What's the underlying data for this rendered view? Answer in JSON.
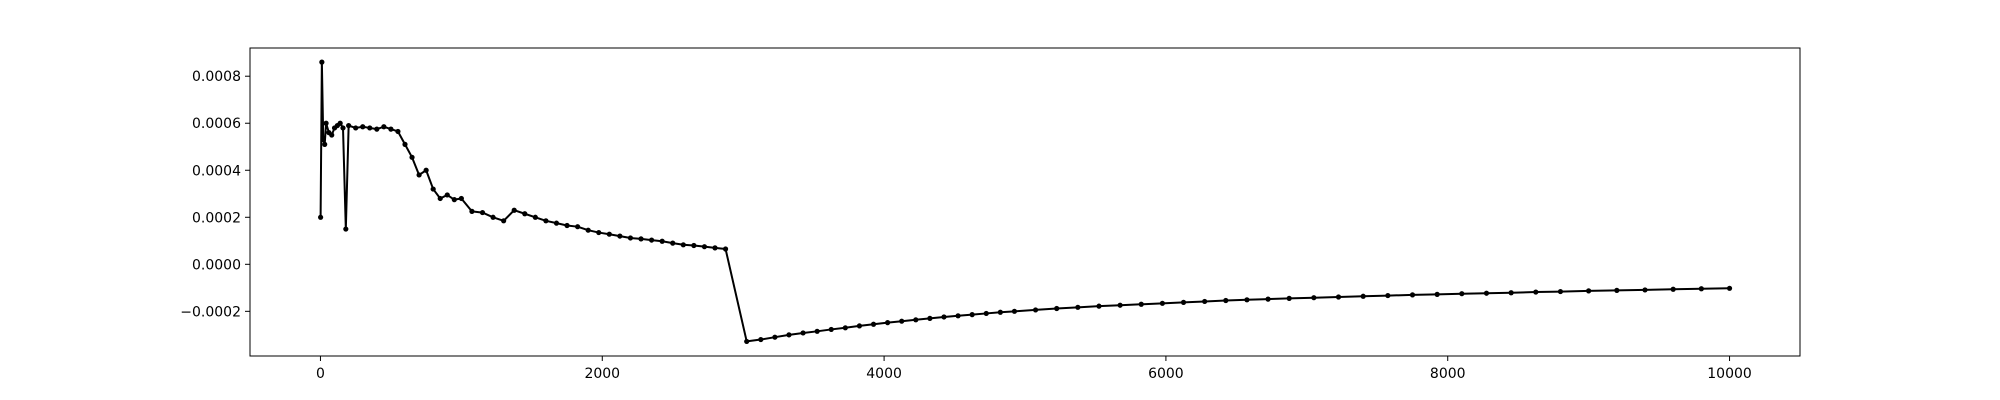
{
  "chart_data": {
    "type": "line",
    "title": "",
    "xlabel": "",
    "ylabel": "",
    "xlim": [
      -500,
      10500
    ],
    "ylim": [
      -0.00039,
      0.00092
    ],
    "grid": false,
    "line_color": "#000000",
    "marker": "dot",
    "x_ticks": [
      {
        "value": 0,
        "label": "0"
      },
      {
        "value": 2000,
        "label": "2000"
      },
      {
        "value": 4000,
        "label": "4000"
      },
      {
        "value": 6000,
        "label": "6000"
      },
      {
        "value": 8000,
        "label": "8000"
      },
      {
        "value": 10000,
        "label": "10000"
      }
    ],
    "y_ticks": [
      {
        "value": -0.0002,
        "label": "−0.0002"
      },
      {
        "value": 0.0,
        "label": "0.0000"
      },
      {
        "value": 0.0002,
        "label": "0.0002"
      },
      {
        "value": 0.0004,
        "label": "0.0004"
      },
      {
        "value": 0.0006,
        "label": "0.0006"
      },
      {
        "value": 0.0008,
        "label": "0.0008"
      }
    ],
    "series": [
      {
        "x": [
          1,
          10,
          20,
          30,
          40,
          60,
          80,
          100,
          120,
          140,
          160,
          180,
          200,
          250,
          300,
          350,
          400,
          450,
          500,
          550,
          600,
          650,
          700,
          750,
          800,
          850,
          900,
          950,
          1000,
          1075,
          1150,
          1225,
          1300,
          1375,
          1450,
          1525,
          1600,
          1675,
          1750,
          1825,
          1900,
          1975,
          2050,
          2125,
          2200,
          2275,
          2350,
          2425,
          2500,
          2575,
          2650,
          2725,
          2800,
          2875,
          3025,
          3125,
          3225,
          3325,
          3425,
          3525,
          3625,
          3725,
          3825,
          3925,
          4025,
          4125,
          4225,
          4325,
          4425,
          4525,
          4625,
          4725,
          4825,
          4925,
          5075,
          5225,
          5375,
          5525,
          5675,
          5825,
          5975,
          6125,
          6275,
          6425,
          6575,
          6725,
          6875,
          7050,
          7225,
          7400,
          7575,
          7750,
          7925,
          8100,
          8275,
          8450,
          8625,
          8800,
          9000,
          9200,
          9400,
          9600,
          9800,
          10000
        ],
        "y": [
          0.0002,
          0.00086,
          0.00053,
          0.00051,
          0.0006,
          0.00056,
          0.00055,
          0.00058,
          0.00059,
          0.0006,
          0.00058,
          0.00015,
          0.00059,
          0.00058,
          0.000585,
          0.00058,
          0.000575,
          0.000585,
          0.000575,
          0.000565,
          0.00051,
          0.000455,
          0.00038,
          0.0004,
          0.00032,
          0.00028,
          0.000295,
          0.000275,
          0.00028,
          0.000225,
          0.00022,
          0.0002,
          0.000185,
          0.00023,
          0.000215,
          0.0002,
          0.000185,
          0.000175,
          0.000165,
          0.00016,
          0.000145,
          0.000135,
          0.000128,
          0.00012,
          0.000112,
          0.000108,
          0.000103,
          9.8e-05,
          9e-05,
          8.3e-05,
          8e-05,
          7.5e-05,
          7e-05,
          6.5e-05,
          -0.000328,
          -0.00032,
          -0.00031,
          -0.0003,
          -0.000292,
          -0.000285,
          -0.000277,
          -0.00027,
          -0.000262,
          -0.000255,
          -0.000248,
          -0.000242,
          -0.000236,
          -0.00023,
          -0.000224,
          -0.000219,
          -0.000214,
          -0.000209,
          -0.000204,
          -0.0002,
          -0.000194,
          -0.000188,
          -0.000183,
          -0.000178,
          -0.000174,
          -0.00017,
          -0.000166,
          -0.000162,
          -0.000158,
          -0.000154,
          -0.000151,
          -0.000148,
          -0.000145,
          -0.000142,
          -0.000139,
          -0.000136,
          -0.000133,
          -0.00013,
          -0.000128,
          -0.000125,
          -0.000123,
          -0.000121,
          -0.000118,
          -0.000116,
          -0.000113,
          -0.000111,
          -0.000109,
          -0.000106,
          -0.000104,
          -0.000102
        ]
      }
    ]
  }
}
